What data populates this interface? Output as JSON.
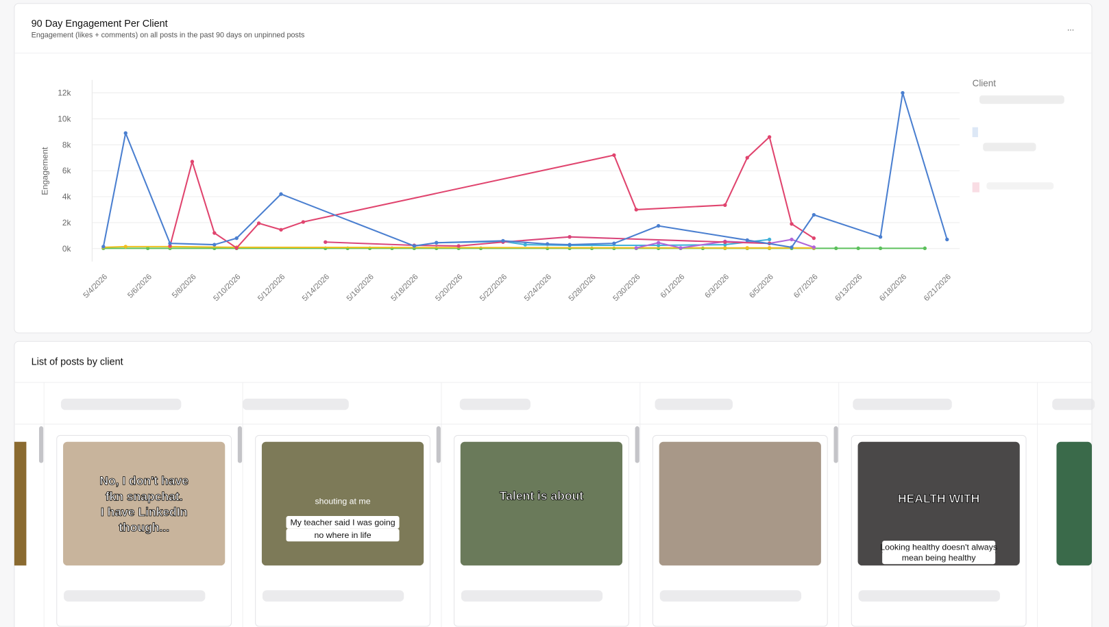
{
  "chart_card": {
    "title": "90 Day Engagement Per Client",
    "subtitle": "Engagement (likes + comments) on all posts in the past 90 days on unpinned posts",
    "menu": "..."
  },
  "chart_data": {
    "type": "line",
    "y_label": "Engagement",
    "legend_title": "Client",
    "span_gaps": true,
    "grid": true,
    "categories": [
      "5/4/2026",
      null,
      "5/6/2026",
      null,
      "5/8/2026",
      null,
      "5/10/2026",
      null,
      "5/12/2026",
      null,
      "5/14/2026",
      null,
      "5/16/2026",
      null,
      "5/18/2026",
      null,
      "5/20/2026",
      null,
      "5/22/2026",
      null,
      "5/24/2026",
      null,
      "5/28/2026",
      null,
      "5/30/2026",
      null,
      "6/1/2026",
      null,
      "6/3/2026",
      null,
      "6/5/2026",
      null,
      "6/7/2026",
      null,
      "6/13/2026",
      null,
      "6/18/2026",
      null,
      "6/21/2026"
    ],
    "ylim": [
      -1000,
      13000
    ],
    "yticks": [
      {
        "value": 0,
        "label": "0k"
      },
      {
        "value": 2000,
        "label": "2k"
      },
      {
        "value": 4000,
        "label": "4k"
      },
      {
        "value": 6000,
        "label": "6k"
      },
      {
        "value": 8000,
        "label": "8k"
      },
      {
        "value": 10000,
        "label": "10k"
      },
      {
        "value": 12000,
        "label": "12k"
      }
    ],
    "series": [
      {
        "color": "#5cc05c",
        "values": [
          20,
          null,
          20,
          20,
          null,
          20,
          20,
          null,
          null,
          null,
          20,
          20,
          20,
          20,
          20,
          20,
          20,
          20,
          null,
          null,
          20,
          20,
          20,
          20,
          20,
          20,
          20,
          20,
          20,
          20,
          20,
          20,
          20,
          20,
          20,
          20,
          null,
          20,
          null
        ]
      },
      {
        "color": "#f0c020",
        "values": [
          100,
          150,
          null,
          150,
          null,
          null,
          100,
          null,
          null,
          null,
          null,
          null,
          null,
          null,
          null,
          null,
          null,
          null,
          null,
          null,
          null,
          null,
          null,
          null,
          null,
          null,
          null,
          null,
          50,
          50,
          50,
          null,
          50,
          null,
          null,
          null,
          null,
          null,
          null
        ]
      },
      {
        "color": "#3fb0d8",
        "values": [
          null,
          null,
          null,
          null,
          null,
          null,
          null,
          null,
          null,
          null,
          null,
          null,
          null,
          null,
          null,
          450,
          null,
          null,
          550,
          300,
          null,
          250,
          null,
          null,
          null,
          250,
          null,
          null,
          300,
          null,
          700,
          null,
          null,
          null,
          null,
          null,
          null,
          null,
          null
        ]
      },
      {
        "color": "#b066d8",
        "values": [
          null,
          null,
          null,
          null,
          null,
          null,
          null,
          null,
          null,
          null,
          null,
          null,
          null,
          null,
          null,
          null,
          null,
          null,
          null,
          null,
          null,
          null,
          null,
          null,
          50,
          450,
          50,
          null,
          550,
          null,
          400,
          700,
          100,
          null,
          null,
          null,
          null,
          null,
          null
        ]
      },
      {
        "color": "#d9457a",
        "values": [
          null,
          null,
          null,
          null,
          null,
          null,
          null,
          null,
          null,
          null,
          500,
          null,
          null,
          null,
          250,
          null,
          200,
          null,
          500,
          null,
          null,
          900,
          null,
          null,
          null,
          null,
          null,
          null,
          500,
          null,
          400,
          null,
          null,
          null,
          null,
          null,
          null,
          null,
          null
        ]
      },
      {
        "color": "#e0446e",
        "values": [
          null,
          null,
          null,
          200,
          6700,
          1200,
          50,
          1950,
          1450,
          2050,
          null,
          null,
          null,
          null,
          null,
          null,
          null,
          null,
          null,
          null,
          null,
          null,
          null,
          7200,
          3000,
          null,
          null,
          null,
          3350,
          7000,
          8600,
          1900,
          800,
          null,
          null,
          null,
          null,
          null,
          null
        ]
      },
      {
        "color": "#4a7fd0",
        "values": [
          150,
          8900,
          null,
          400,
          null,
          300,
          800,
          null,
          4200,
          null,
          null,
          null,
          null,
          null,
          200,
          450,
          null,
          null,
          600,
          null,
          350,
          300,
          null,
          400,
          null,
          1750,
          null,
          null,
          null,
          650,
          null,
          100,
          2600,
          null,
          null,
          900,
          12000,
          null,
          700
        ]
      }
    ]
  },
  "posts_card": {
    "title": "List of posts by client",
    "posts": [
      {
        "captions": [
          "No, I don't have",
          "fkn snapchat.",
          "I have LinkedIn",
          "though..."
        ]
      },
      {
        "captions": [
          "shouting at me",
          "My teacher said I was going",
          "no where in life"
        ]
      },
      {
        "captions": [
          "Talent is about"
        ]
      },
      {
        "captions": []
      },
      {
        "captions": [
          "HEALTH WITH",
          "Looking healthy doesn't always",
          "mean being healthy"
        ]
      }
    ]
  }
}
